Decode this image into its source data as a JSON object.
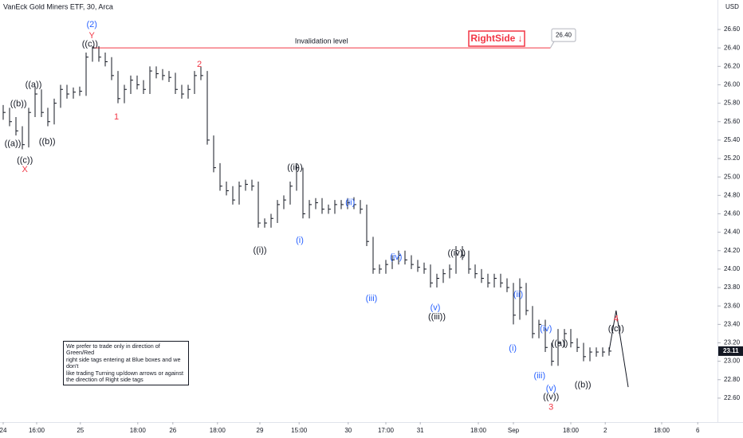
{
  "chart_data": {
    "type": "hlc",
    "title": "VanEck Gold Miners ETF, 30, Arca",
    "currency": "USD",
    "color": "#131722",
    "ylim": [
      22.34,
      26.92
    ],
    "xlim": [
      -0.5,
      112
    ],
    "grid": false,
    "yticks": [
      {
        "value": 22.6,
        "label": "22.60"
      },
      {
        "value": 22.8,
        "label": "22.80"
      },
      {
        "value": 23,
        "label": "23.00"
      },
      {
        "value": 23.2,
        "label": "23.20"
      },
      {
        "value": 23.4,
        "label": "23.40"
      },
      {
        "value": 23.6,
        "label": "23.60"
      },
      {
        "value": 23.8,
        "label": "23.80"
      },
      {
        "value": 24,
        "label": "24.00"
      },
      {
        "value": 24.2,
        "label": "24.20"
      },
      {
        "value": 24.4,
        "label": "24.40"
      },
      {
        "value": 24.6,
        "label": "24.60"
      },
      {
        "value": 24.8,
        "label": "24.80"
      },
      {
        "value": 25,
        "label": "25.00"
      },
      {
        "value": 25.2,
        "label": "25.20"
      },
      {
        "value": 25.4,
        "label": "25.40"
      },
      {
        "value": 25.6,
        "label": "25.60"
      },
      {
        "value": 25.8,
        "label": "25.80"
      },
      {
        "value": 26,
        "label": "26.00"
      },
      {
        "value": 26.2,
        "label": "26.20"
      },
      {
        "value": 26.4,
        "label": "26.40"
      },
      {
        "value": 26.6,
        "label": "26.60"
      }
    ],
    "xticks": [
      {
        "value": 0,
        "label": "24"
      },
      {
        "value": 5.25,
        "label": "16:00"
      },
      {
        "value": 12.1,
        "label": "25"
      },
      {
        "value": 21.1,
        "label": "18:00"
      },
      {
        "value": 26.6,
        "label": "26"
      },
      {
        "value": 33.6,
        "label": "18:00"
      },
      {
        "value": 40.25,
        "label": "29"
      },
      {
        "value": 46.4,
        "label": "15:00"
      },
      {
        "value": 54.1,
        "label": "30"
      },
      {
        "value": 60,
        "label": "17:00"
      },
      {
        "value": 65.4,
        "label": "31"
      },
      {
        "value": 74.5,
        "label": "18:00"
      },
      {
        "value": 80,
        "label": "Sep"
      },
      {
        "value": 89,
        "label": "18:00"
      },
      {
        "value": 94.4,
        "label": "2"
      },
      {
        "value": 103.25,
        "label": "18:00"
      },
      {
        "value": 108.9,
        "label": "6"
      }
    ],
    "high": [
      25.78,
      25.75,
      25.65,
      25.55,
      25.75,
      25.98,
      25.95,
      25.75,
      25.85,
      26.0,
      26.0,
      25.97,
      25.98,
      26.35,
      26.42,
      26.42,
      26.35,
      26.3,
      26.15,
      26.0,
      26.1,
      26.1,
      26.05,
      26.2,
      26.2,
      26.17,
      26.15,
      26.13,
      26.0,
      26.0,
      26.15,
      26.2,
      26.15,
      25.45,
      25.15,
      24.95,
      24.9,
      24.95,
      24.97,
      24.97,
      24.95,
      24.55,
      24.6,
      24.75,
      24.8,
      24.95,
      25.15,
      25.1,
      24.75,
      24.77,
      24.77,
      24.7,
      24.75,
      24.75,
      24.77,
      24.78,
      24.75,
      24.7,
      24.35,
      24.05,
      24.1,
      24.15,
      24.2,
      24.2,
      24.15,
      24.1,
      24.07,
      24.05,
      23.95,
      24.0,
      24.05,
      24.25,
      24.25,
      24.2,
      24.05,
      24.0,
      23.95,
      23.95,
      23.95,
      23.9,
      23.85,
      23.9,
      23.85,
      23.6,
      23.45,
      23.45,
      23.2,
      23.35,
      23.35,
      23.35,
      23.25,
      23.2,
      23.15,
      23.15,
      23.15,
      23.15
    ],
    "low": [
      25.62,
      25.55,
      25.45,
      25.3,
      25.32,
      25.65,
      25.65,
      25.55,
      25.57,
      25.75,
      25.85,
      25.85,
      25.88,
      25.88,
      26.25,
      26.25,
      26.2,
      26.05,
      25.8,
      25.8,
      25.9,
      25.95,
      25.9,
      25.9,
      26.07,
      26.05,
      26.03,
      25.9,
      25.85,
      25.85,
      25.9,
      26.05,
      25.35,
      25.05,
      24.85,
      24.8,
      24.7,
      24.7,
      24.85,
      24.85,
      24.45,
      24.45,
      24.45,
      24.5,
      24.65,
      24.7,
      24.85,
      24.55,
      24.55,
      24.65,
      24.6,
      24.6,
      24.6,
      24.65,
      24.65,
      24.65,
      24.6,
      24.25,
      23.95,
      23.95,
      23.95,
      24.0,
      24.05,
      24.05,
      24.0,
      23.97,
      23.95,
      23.8,
      23.8,
      23.85,
      23.9,
      23.95,
      24.1,
      23.95,
      23.9,
      23.85,
      23.8,
      23.8,
      23.8,
      23.75,
      23.4,
      23.45,
      23.5,
      23.25,
      23.25,
      23.1,
      22.95,
      22.95,
      23.15,
      23.15,
      23.1,
      23.0,
      23.0,
      23.05,
      23.05,
      23.06
    ],
    "close": [
      25.7,
      25.6,
      25.5,
      25.35,
      25.7,
      25.9,
      25.7,
      25.6,
      25.8,
      25.95,
      25.9,
      25.92,
      25.93,
      26.3,
      26.4,
      26.3,
      26.25,
      26.1,
      25.85,
      25.95,
      26.05,
      26.0,
      25.95,
      26.15,
      26.12,
      26.1,
      26.08,
      25.95,
      25.9,
      25.95,
      26.1,
      26.1,
      25.4,
      25.1,
      24.9,
      24.85,
      24.75,
      24.9,
      24.92,
      24.9,
      24.5,
      24.5,
      24.55,
      24.7,
      24.75,
      24.9,
      25.1,
      24.6,
      24.7,
      24.72,
      24.65,
      24.65,
      24.7,
      24.7,
      24.72,
      24.7,
      24.65,
      24.3,
      24.0,
      24.0,
      24.05,
      24.1,
      24.15,
      24.1,
      24.05,
      24.02,
      24.0,
      23.85,
      23.9,
      23.95,
      24.0,
      24.2,
      24.15,
      24.0,
      23.95,
      23.9,
      23.85,
      23.9,
      23.85,
      23.8,
      23.5,
      23.8,
      23.55,
      23.3,
      23.4,
      23.15,
      23.0,
      23.2,
      23.3,
      23.2,
      23.15,
      23.05,
      23.1,
      23.1,
      23.1,
      23.11
    ],
    "projection": {
      "color": "#131722",
      "x": [
        95,
        96.1,
        98
      ],
      "values": [
        23.11,
        23.55,
        22.72
      ]
    },
    "invalidation": {
      "label": "Invalidation level",
      "value": 26.4,
      "value_label": "26.40",
      "color": "#f23645",
      "x": [
        14,
        85.8
      ]
    },
    "last_price": {
      "value": 23.11,
      "label": "23.11"
    },
    "right_side_tag": "RightSide ↓",
    "note": [
      "We prefer to trade only in direction of Green/Red",
      "right side tags entering at Blue boxes and we don't",
      "like trading Turning up/down arrows or against",
      "the direction of Right side tags"
    ],
    "annotations": [
      {
        "text": "(2)",
        "x": 13.9,
        "y": 26.65,
        "color": "#2962ff"
      },
      {
        "text": "Y",
        "x": 13.9,
        "y": 26.53,
        "color": "#f23645"
      },
      {
        "text": "((c))",
        "x": 13.6,
        "y": 26.44,
        "color": "#131722"
      },
      {
        "text": "((a))",
        "x": 4.75,
        "y": 26.0,
        "color": "#131722"
      },
      {
        "text": "((b))",
        "x": 2.4,
        "y": 25.79,
        "color": "#131722"
      },
      {
        "text": "((a))",
        "x": 1.5,
        "y": 25.36,
        "color": "#131722"
      },
      {
        "text": "((c))",
        "x": 3.4,
        "y": 25.18,
        "color": "#131722"
      },
      {
        "text": "X",
        "x": 3.4,
        "y": 25.08,
        "color": "#f23645"
      },
      {
        "text": "((b))",
        "x": 6.9,
        "y": 25.38,
        "color": "#131722"
      },
      {
        "text": "1",
        "x": 17.75,
        "y": 25.65,
        "color": "#f23645"
      },
      {
        "text": "2",
        "x": 30.75,
        "y": 26.22,
        "color": "#f23645"
      },
      {
        "text": "((i))",
        "x": 40.25,
        "y": 24.2,
        "color": "#131722"
      },
      {
        "text": "((ii))",
        "x": 45.75,
        "y": 25.1,
        "color": "#131722"
      },
      {
        "text": "(i)",
        "x": 46.5,
        "y": 24.31,
        "color": "#2962ff"
      },
      {
        "text": "(ii)",
        "x": 54.4,
        "y": 24.72,
        "color": "#2962ff"
      },
      {
        "text": "(iv)",
        "x": 61.6,
        "y": 24.13,
        "color": "#2962ff"
      },
      {
        "text": "(iii)",
        "x": 57.75,
        "y": 23.68,
        "color": "#2962ff"
      },
      {
        "text": "(v)",
        "x": 67.75,
        "y": 23.58,
        "color": "#2962ff"
      },
      {
        "text": "((iii))",
        "x": 68,
        "y": 23.48,
        "color": "#131722"
      },
      {
        "text": "((iv))",
        "x": 71.1,
        "y": 24.17,
        "color": "#131722"
      },
      {
        "text": "(ii)",
        "x": 80.75,
        "y": 23.72,
        "color": "#2962ff"
      },
      {
        "text": "(i)",
        "x": 79.9,
        "y": 23.14,
        "color": "#2962ff"
      },
      {
        "text": "(iv)",
        "x": 85.1,
        "y": 23.35,
        "color": "#2962ff"
      },
      {
        "text": "((a))",
        "x": 87.25,
        "y": 23.19,
        "color": "#131722"
      },
      {
        "text": "(iii)",
        "x": 84.1,
        "y": 22.84,
        "color": "#2962ff"
      },
      {
        "text": "(v)",
        "x": 85.9,
        "y": 22.7,
        "color": "#2962ff"
      },
      {
        "text": "((v))",
        "x": 85.9,
        "y": 22.61,
        "color": "#131722"
      },
      {
        "text": "3",
        "x": 85.9,
        "y": 22.5,
        "color": "#f23645"
      },
      {
        "text": "((b))",
        "x": 90.9,
        "y": 22.74,
        "color": "#131722"
      },
      {
        "text": "4",
        "x": 96.1,
        "y": 23.46,
        "color": "#f23645"
      },
      {
        "text": "((c))",
        "x": 96.1,
        "y": 23.35,
        "color": "#131722"
      }
    ]
  }
}
